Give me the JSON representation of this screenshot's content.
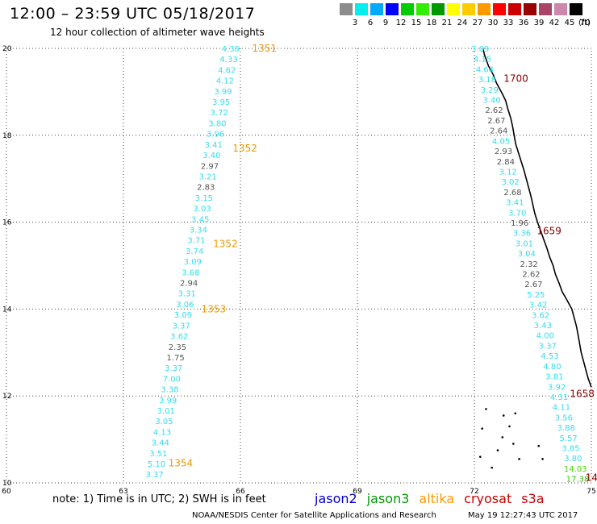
{
  "header": {
    "title": "12:00 – 23:59 UTC 05/18/2017",
    "subtitle": "12 hour collection of altimeter wave heights"
  },
  "color_scale": {
    "unit": "(ft)",
    "bins": [
      {
        "label": "3",
        "color": "#8c8c8c"
      },
      {
        "label": "6",
        "color": "#00eeee"
      },
      {
        "label": "9",
        "color": "#00aaff"
      },
      {
        "label": "12",
        "color": "#0000ff"
      },
      {
        "label": "15",
        "color": "#00cc00"
      },
      {
        "label": "18",
        "color": "#33ee00"
      },
      {
        "label": "21",
        "color": "#009900"
      },
      {
        "label": "24",
        "color": "#ffff00"
      },
      {
        "label": "27",
        "color": "#ffcc00"
      },
      {
        "label": "30",
        "color": "#ff9900"
      },
      {
        "label": "33",
        "color": "#ff0000"
      },
      {
        "label": "36",
        "color": "#cc0000"
      },
      {
        "label": "39",
        "color": "#990000"
      },
      {
        "label": "42",
        "color": "#aa4466"
      },
      {
        "label": "45",
        "color": "#cc88aa"
      },
      {
        "label": "70",
        "color": "#000000"
      }
    ]
  },
  "axes": {
    "x_ticks": [
      "60",
      "63",
      "66",
      "69",
      "72",
      "75"
    ],
    "y_ticks": [
      "10",
      "12",
      "14",
      "16",
      "18",
      "20"
    ],
    "x_range": [
      60,
      75
    ],
    "y_range": [
      10,
      20
    ]
  },
  "tracks": [
    {
      "lon_top": 65.75,
      "lon_bottom": 63.8,
      "lat_top": 20.0,
      "lat_bottom": 10.2,
      "values": [
        {
          "t": "4.36",
          "c": "#33ddee"
        },
        {
          "t": "4.33",
          "c": "#33ddee"
        },
        {
          "t": "4.62",
          "c": "#33ddee"
        },
        {
          "t": "4.12",
          "c": "#33ddee"
        },
        {
          "t": "3.99",
          "c": "#33ddee"
        },
        {
          "t": "3.95",
          "c": "#33ddee"
        },
        {
          "t": "3.72",
          "c": "#33ddee"
        },
        {
          "t": "3.80",
          "c": "#33ddee"
        },
        {
          "t": "3.96",
          "c": "#33ddee"
        },
        {
          "t": "3.41",
          "c": "#33ddee"
        },
        {
          "t": "3.40",
          "c": "#33ddee"
        },
        {
          "t": "2.97",
          "c": "#555555"
        },
        {
          "t": "3.21",
          "c": "#33ddee"
        },
        {
          "t": "2.83",
          "c": "#555555"
        },
        {
          "t": "3.15",
          "c": "#33ddee"
        },
        {
          "t": "3.03",
          "c": "#33ddee"
        },
        {
          "t": "3.45",
          "c": "#33ddee"
        },
        {
          "t": "3.34",
          "c": "#33ddee"
        },
        {
          "t": "3.71",
          "c": "#33ddee"
        },
        {
          "t": "3.74",
          "c": "#33ddee"
        },
        {
          "t": "3.09",
          "c": "#33ddee"
        },
        {
          "t": "3.68",
          "c": "#33ddee"
        },
        {
          "t": "2.94",
          "c": "#555555"
        },
        {
          "t": "3.31",
          "c": "#33ddee"
        },
        {
          "t": "3.06",
          "c": "#33ddee"
        },
        {
          "t": "3.09",
          "c": "#33ddee"
        },
        {
          "t": "3.37",
          "c": "#33ddee"
        },
        {
          "t": "3.62",
          "c": "#33ddee"
        },
        {
          "t": "2.35",
          "c": "#555555"
        },
        {
          "t": "1.75",
          "c": "#555555"
        },
        {
          "t": "3.37",
          "c": "#33ddee"
        },
        {
          "t": "7.00",
          "c": "#33ddee"
        },
        {
          "t": "3.38",
          "c": "#33ddee"
        },
        {
          "t": "3.99",
          "c": "#33ddee"
        },
        {
          "t": "3.01",
          "c": "#33ddee"
        },
        {
          "t": "3.05",
          "c": "#33ddee"
        },
        {
          "t": "4.13",
          "c": "#33ddee"
        },
        {
          "t": "3.44",
          "c": "#33ddee"
        },
        {
          "t": "3.51",
          "c": "#33ddee"
        },
        {
          "t": "5.10",
          "c": "#33ddee"
        },
        {
          "t": "3.37",
          "c": "#33ddee"
        }
      ]
    },
    {
      "lon_top": 72.15,
      "lon_bottom": 74.65,
      "lat_top": 20.0,
      "lat_bottom": 10.1,
      "values": [
        {
          "t": "3.09",
          "c": "#33ddee"
        },
        {
          "t": "4.15",
          "c": "#33ddee"
        },
        {
          "t": "4.64",
          "c": "#33ddee"
        },
        {
          "t": "3.18",
          "c": "#33ddee"
        },
        {
          "t": "3.29",
          "c": "#33ddee"
        },
        {
          "t": "3.40",
          "c": "#33ddee"
        },
        {
          "t": "2.62",
          "c": "#555555"
        },
        {
          "t": "2.67",
          "c": "#555555"
        },
        {
          "t": "2.64",
          "c": "#555555"
        },
        {
          "t": "4.05",
          "c": "#33ddee"
        },
        {
          "t": "2.93",
          "c": "#555555"
        },
        {
          "t": "2.84",
          "c": "#555555"
        },
        {
          "t": "3.12",
          "c": "#33ddee"
        },
        {
          "t": "3.02",
          "c": "#33ddee"
        },
        {
          "t": "2.68",
          "c": "#555555"
        },
        {
          "t": "3.41",
          "c": "#33ddee"
        },
        {
          "t": "3.70",
          "c": "#33ddee"
        },
        {
          "t": "1.96",
          "c": "#555555"
        },
        {
          "t": "3.36",
          "c": "#33ddee"
        },
        {
          "t": "3.01",
          "c": "#33ddee"
        },
        {
          "t": "3.04",
          "c": "#33ddee"
        },
        {
          "t": "2.32",
          "c": "#555555"
        },
        {
          "t": "2.62",
          "c": "#555555"
        },
        {
          "t": "2.67",
          "c": "#555555"
        },
        {
          "t": "5.25",
          "c": "#33ddee"
        },
        {
          "t": "3.42",
          "c": "#33ddee"
        },
        {
          "t": "3.62",
          "c": "#33ddee"
        },
        {
          "t": "3.43",
          "c": "#33ddee"
        },
        {
          "t": "4.00",
          "c": "#33ddee"
        },
        {
          "t": "3.37",
          "c": "#33ddee"
        },
        {
          "t": "4.53",
          "c": "#33ddee"
        },
        {
          "t": "4.80",
          "c": "#33ddee"
        },
        {
          "t": "3.81",
          "c": "#33ddee"
        },
        {
          "t": "3.92",
          "c": "#33ddee"
        },
        {
          "t": "4.31",
          "c": "#33ddee"
        },
        {
          "t": "4.11",
          "c": "#33ddee"
        },
        {
          "t": "3.56",
          "c": "#33ddee"
        },
        {
          "t": "3.88",
          "c": "#33ddee"
        },
        {
          "t": "5.57",
          "c": "#33ddee"
        },
        {
          "t": "3.85",
          "c": "#33ddee"
        },
        {
          "t": "3.80",
          "c": "#33ddee"
        },
        {
          "t": "14.03",
          "c": "#44dd00"
        },
        {
          "t": "17.38",
          "c": "#33bb00"
        }
      ]
    }
  ],
  "time_labels": [
    {
      "t": "1351",
      "lon": 66.3,
      "lat": 20.0,
      "c": "#ee9900"
    },
    {
      "t": "1352",
      "lon": 65.8,
      "lat": 17.7,
      "c": "#ee9900"
    },
    {
      "t": "1352",
      "lon": 65.3,
      "lat": 15.5,
      "c": "#ee9900"
    },
    {
      "t": "1353",
      "lon": 65.0,
      "lat": 14.0,
      "c": "#ee9900"
    },
    {
      "t": "1354",
      "lon": 64.15,
      "lat": 10.45,
      "c": "#ee9900"
    },
    {
      "t": "1700",
      "lon": 72.75,
      "lat": 19.3,
      "c": "#880000"
    },
    {
      "t": "1659",
      "lon": 73.6,
      "lat": 15.8,
      "c": "#880000"
    },
    {
      "t": "1658",
      "lon": 74.45,
      "lat": 12.05,
      "c": "#880000"
    },
    {
      "t": "14",
      "lon": 74.85,
      "lat": 10.12,
      "c": "#880000"
    }
  ],
  "note": "note:  1) Time is in UTC;  2) SWH is in feet",
  "legend": [
    {
      "label": "jason2",
      "color": "#0000cc"
    },
    {
      "label": "jason3",
      "color": "#009900"
    },
    {
      "label": "altika",
      "color": "#ff9900"
    },
    {
      "label": "cryosat",
      "color": "#cc0000"
    },
    {
      "label": "s3a",
      "color": "#cc0000"
    }
  ],
  "footer": {
    "credit": "NOAA/NESDIS Center for Satellite Applications and Research",
    "timestamp": "May 19 12:27:43 UTC 2017"
  }
}
